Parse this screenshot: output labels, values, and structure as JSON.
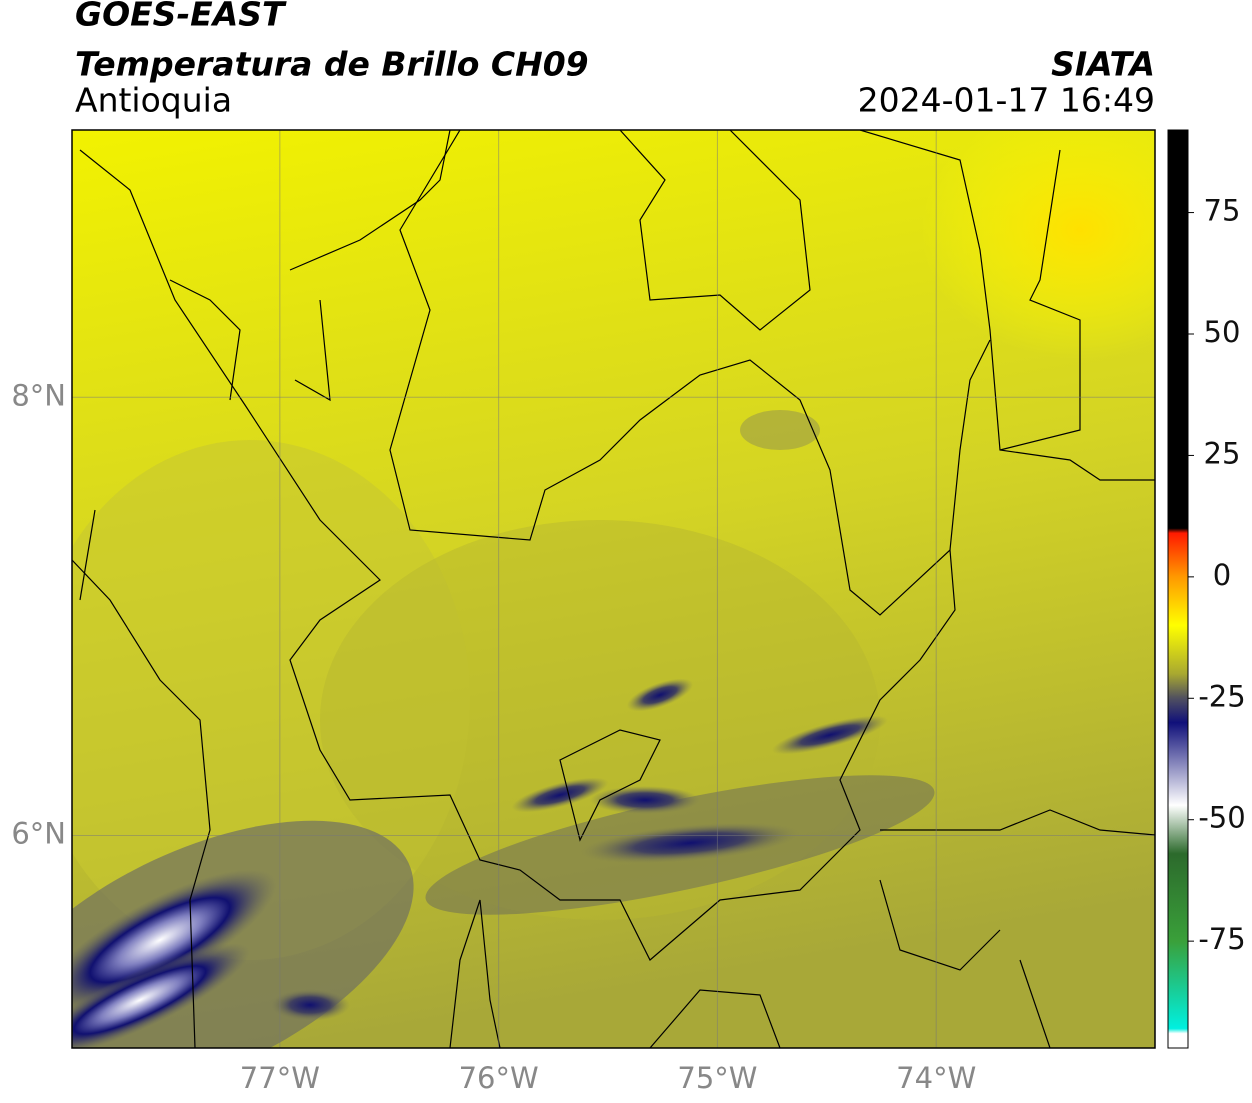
{
  "header": {
    "title": "GOES-EAST",
    "subtitle": "Temperatura de Brillo CH09",
    "region": "Antioquia",
    "source": "SIATA",
    "datetime": "2024-01-17 16:49"
  },
  "map": {
    "xlim": [
      -77.95,
      -73.0
    ],
    "ylim": [
      5.03,
      9.22
    ],
    "xticks": [
      {
        "value": -77,
        "label": "77°W"
      },
      {
        "value": -76,
        "label": "76°W"
      },
      {
        "value": -75,
        "label": "75°W"
      },
      {
        "value": -74,
        "label": "74°W"
      }
    ],
    "yticks": [
      {
        "value": 6,
        "label": "6°N"
      },
      {
        "value": 8,
        "label": "8°N"
      }
    ],
    "grid": true
  },
  "colorbar": {
    "lim": [
      -97,
      92
    ],
    "ticks": [
      75,
      50,
      25,
      0,
      -25,
      -50,
      -75
    ],
    "stops": [
      {
        "value": 92,
        "color": "#000000"
      },
      {
        "value": 10,
        "color": "#000000"
      },
      {
        "value": 9,
        "color": "#ff1a00"
      },
      {
        "value": 0,
        "color": "#ff9900"
      },
      {
        "value": -10,
        "color": "#ffff00"
      },
      {
        "value": -20,
        "color": "#a8a830"
      },
      {
        "value": -25,
        "color": "#505060"
      },
      {
        "value": -30,
        "color": "#10107a"
      },
      {
        "value": -47,
        "color": "#ffffff"
      },
      {
        "value": -57,
        "color": "#2c6a2c"
      },
      {
        "value": -75,
        "color": "#3aa03a"
      },
      {
        "value": -93,
        "color": "#00f0e0"
      },
      {
        "value": -94,
        "color": "#ffffff"
      }
    ]
  }
}
